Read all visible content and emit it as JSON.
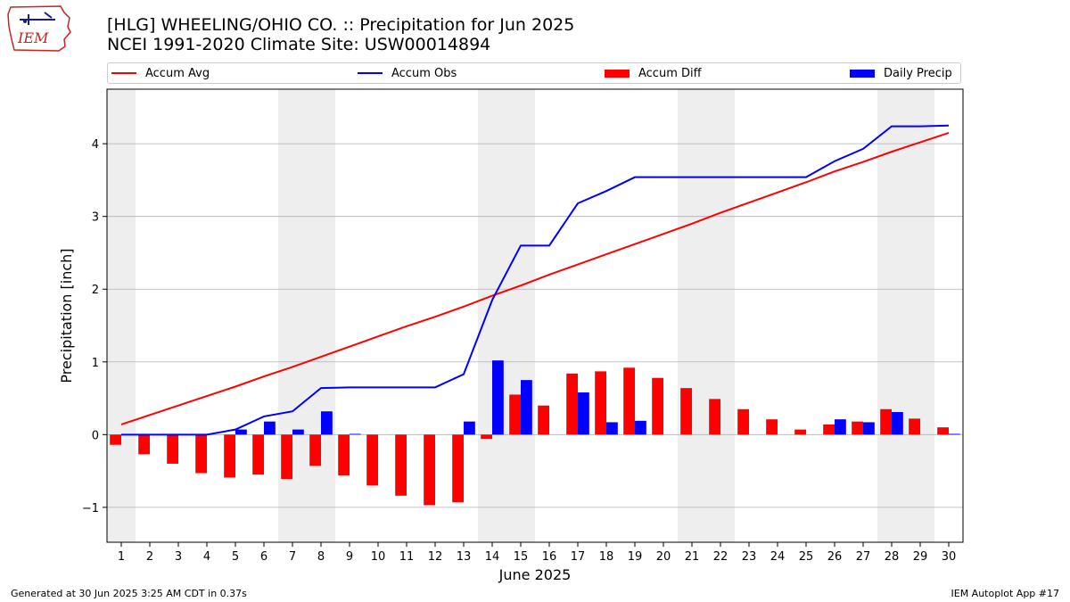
{
  "header": {
    "logo_text": "IEM",
    "title_line1": "[HLG] WHEELING/OHIO CO. :: Precipitation for Jun 2025",
    "title_line2": "NCEI 1991-2020 Climate Site: USW00014894"
  },
  "footer": {
    "left": "Generated at 30 Jun 2025 3:25 AM CDT in 0.37s",
    "right": "IEM Autoplot App #17"
  },
  "colors": {
    "avg": "#ff0000",
    "obs": "#0000ff",
    "diff": "#ff0000",
    "daily": "#0000ff",
    "weekend_shade": "#eeeeee",
    "grid": "#b0b0b0"
  },
  "chart_data": {
    "type": "bar",
    "xlabel": "June 2025",
    "ylabel": "Precipitation [inch]",
    "xlim": [
      0.5,
      30.5
    ],
    "ylim": [
      -1.48,
      4.75
    ],
    "y_ticks": [
      -1,
      0,
      1,
      2,
      3,
      4
    ],
    "y_tick_labels": [
      "−1",
      "0",
      "1",
      "2",
      "3",
      "4"
    ],
    "x": [
      1,
      2,
      3,
      4,
      5,
      6,
      7,
      8,
      9,
      10,
      11,
      12,
      13,
      14,
      15,
      16,
      17,
      18,
      19,
      20,
      21,
      22,
      23,
      24,
      25,
      26,
      27,
      28,
      29,
      30
    ],
    "grid": "horizontal",
    "legend_position": "top",
    "shaded_days": [
      1,
      7,
      8,
      14,
      15,
      21,
      22,
      28,
      29
    ],
    "series": [
      {
        "name": "Accum Avg",
        "kind": "line",
        "values": [
          0.14,
          0.27,
          0.4,
          0.53,
          0.66,
          0.8,
          0.93,
          1.07,
          1.21,
          1.35,
          1.49,
          1.62,
          1.76,
          1.91,
          2.05,
          2.2,
          2.34,
          2.48,
          2.62,
          2.76,
          2.9,
          3.05,
          3.19,
          3.33,
          3.47,
          3.62,
          3.75,
          3.89,
          4.02,
          4.15
        ]
      },
      {
        "name": "Accum Obs",
        "kind": "line",
        "values": [
          0.0,
          0.0,
          0.0,
          0.0,
          0.07,
          0.25,
          0.32,
          0.64,
          0.65,
          0.65,
          0.65,
          0.65,
          0.83,
          1.85,
          2.6,
          2.6,
          3.18,
          3.35,
          3.54,
          3.54,
          3.54,
          3.54,
          3.54,
          3.54,
          3.54,
          3.76,
          3.93,
          4.24,
          4.24,
          4.25
        ]
      },
      {
        "name": "Accum Diff",
        "kind": "bar",
        "values": [
          -0.14,
          -0.27,
          -0.4,
          -0.53,
          -0.59,
          -0.55,
          -0.61,
          -0.43,
          -0.56,
          -0.7,
          -0.84,
          -0.97,
          -0.93,
          -0.06,
          0.55,
          0.4,
          0.84,
          0.87,
          0.92,
          0.78,
          0.64,
          0.49,
          0.35,
          0.21,
          0.07,
          0.14,
          0.18,
          0.35,
          0.22,
          0.1
        ]
      },
      {
        "name": "Daily Precip",
        "kind": "bar",
        "values": [
          0.0,
          0.0,
          0.0,
          0.0,
          0.07,
          0.18,
          0.07,
          0.32,
          0.01,
          0.0,
          0.0,
          0.0,
          0.18,
          1.02,
          0.75,
          0.0,
          0.58,
          0.17,
          0.19,
          0.0,
          0.0,
          0.0,
          0.0,
          0.0,
          0.0,
          0.21,
          0.17,
          0.31,
          0.0,
          0.01
        ]
      }
    ]
  }
}
